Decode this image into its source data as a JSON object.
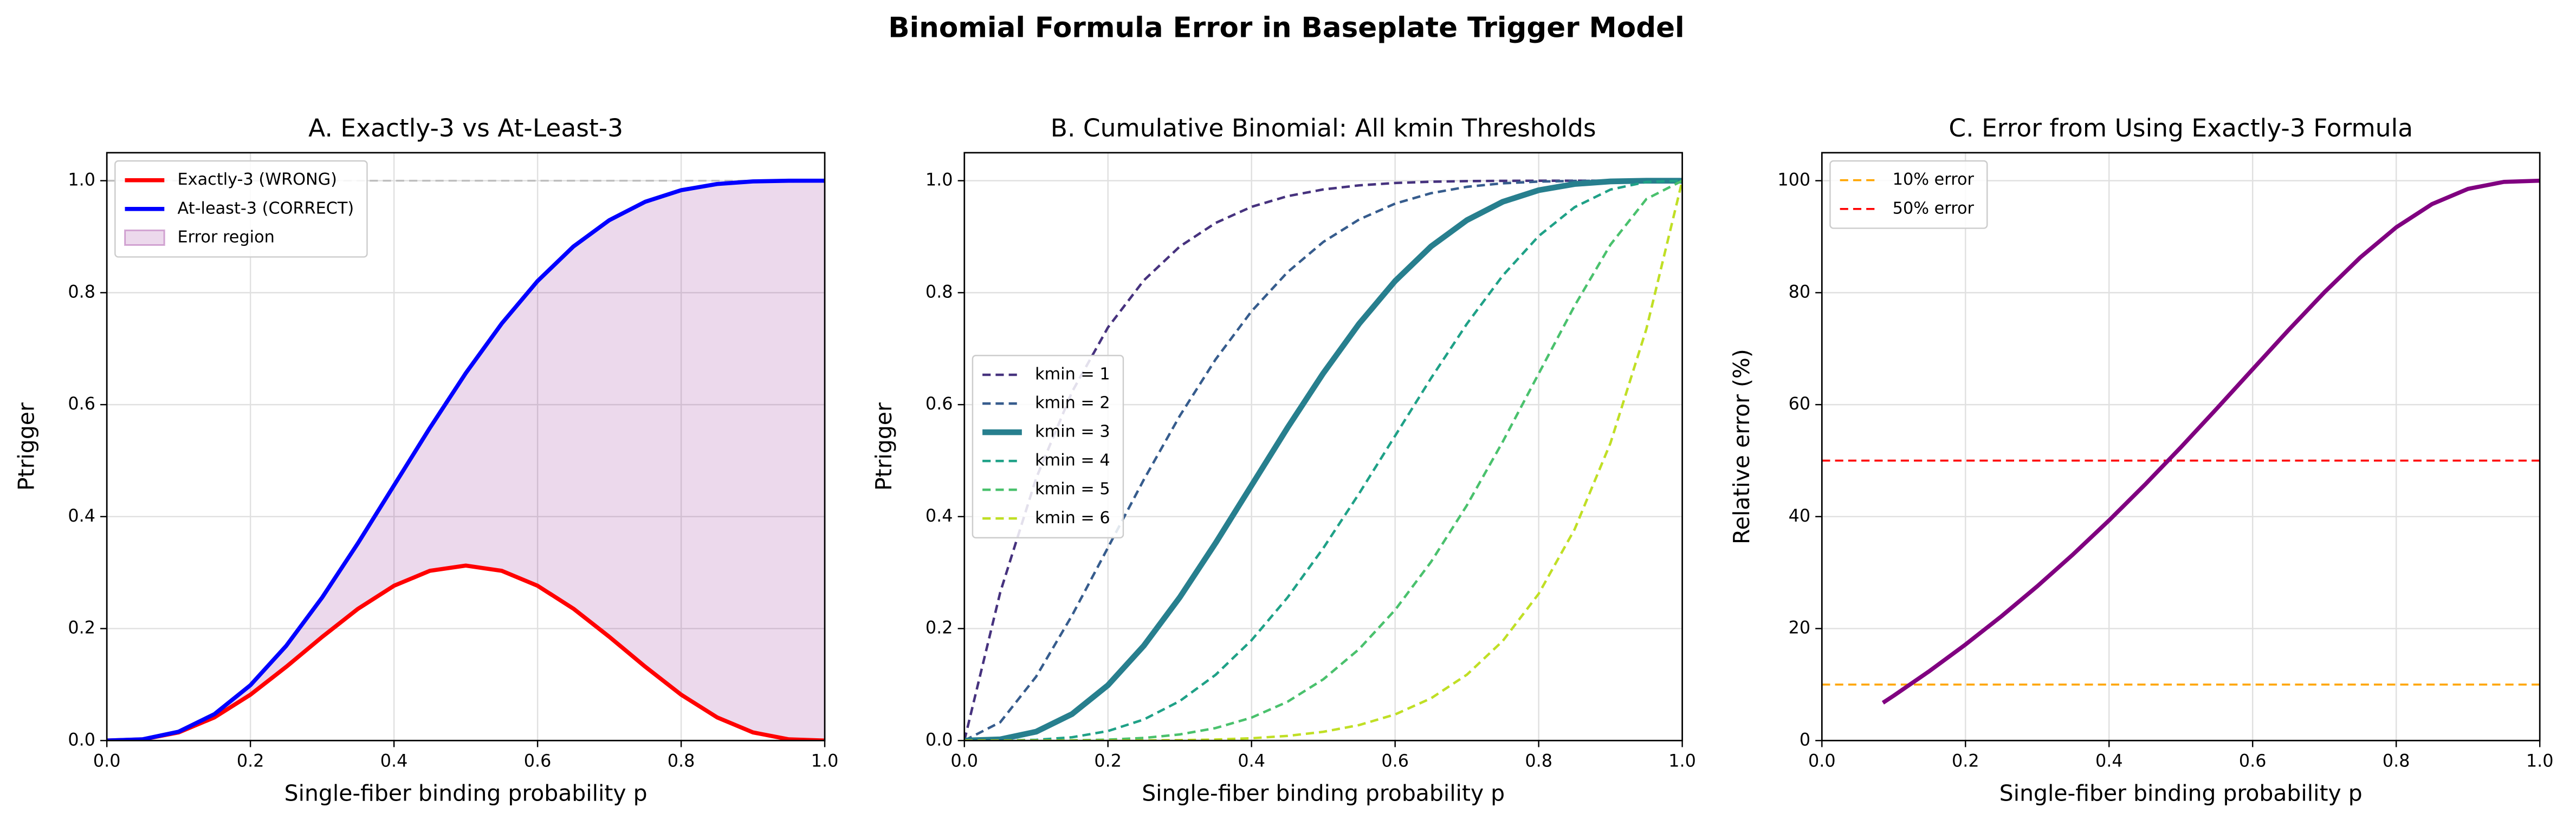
{
  "title": "Binomial Formula Error in Baseplate Trigger Model",
  "chart_data": [
    {
      "type": "line",
      "title": "A. Exactly-3 vs At-Least-3",
      "xlabel": "Single-fiber binding probability p",
      "ylabel": "Ptrigger",
      "x": [
        0,
        0.05,
        0.1,
        0.15,
        0.2,
        0.25,
        0.3,
        0.35,
        0.4,
        0.45,
        0.5,
        0.55,
        0.6,
        0.65,
        0.7,
        0.75,
        0.8,
        0.85,
        0.9,
        0.95,
        1
      ],
      "series": [
        {
          "name": "Exactly-3 (WRONG)",
          "color": "#ff0000",
          "linewidth": 2.5,
          "linestyle": "solid",
          "values": [
            0,
            0.002143,
            0.01458,
            0.041453,
            0.08192,
            0.131836,
            0.18522,
            0.235491,
            0.27648,
            0.303218,
            0.3125,
            0.303218,
            0.27648,
            0.235491,
            0.18522,
            0.131836,
            0.08192,
            0.041453,
            0.01458,
            0.002143,
            0
          ]
        },
        {
          "name": "At-least-3 (CORRECT)",
          "color": "#0000ff",
          "linewidth": 2.5,
          "linestyle": "solid",
          "values": [
            0,
            0.00223,
            0.01585,
            0.047338,
            0.09888,
            0.169434,
            0.25569,
            0.352915,
            0.45568,
            0.558482,
            0.65625,
            0.744742,
            0.8208,
            0.882576,
            0.92953,
            0.962403,
            0.98304,
            0.994115,
            0.99873,
            0.999913,
            1
          ]
        }
      ],
      "fill_between": {
        "name": "Error region",
        "color": "#800080",
        "opacity": 0.15,
        "series": [
          0,
          1
        ]
      },
      "hlines": [
        {
          "value": 1,
          "color": "#999999",
          "linestyle": "dashed",
          "opacity": 0.5
        }
      ],
      "xlim": [
        0,
        1
      ],
      "ylim": [
        0,
        1.05
      ],
      "xticks": [
        {
          "value": 0,
          "label": "0.0"
        },
        {
          "value": 0.2,
          "label": "0.2"
        },
        {
          "value": 0.4,
          "label": "0.4"
        },
        {
          "value": 0.6,
          "label": "0.6"
        },
        {
          "value": 0.8,
          "label": "0.8"
        },
        {
          "value": 1,
          "label": "1.0"
        }
      ],
      "yticks": [
        {
          "value": 0,
          "label": "0.0"
        },
        {
          "value": 0.2,
          "label": "0.2"
        },
        {
          "value": 0.4,
          "label": "0.4"
        },
        {
          "value": 0.6,
          "label": "0.6"
        },
        {
          "value": 0.8,
          "label": "0.8"
        },
        {
          "value": 1,
          "label": "1.0"
        }
      ],
      "grid": true,
      "legend": "upper left"
    },
    {
      "type": "line",
      "title": "B. Cumulative Binomial: All kmin Thresholds",
      "xlabel": "Single-fiber binding probability p",
      "ylabel": "Ptrigger",
      "x": [
        0,
        0.05,
        0.1,
        0.15,
        0.2,
        0.25,
        0.3,
        0.35,
        0.4,
        0.45,
        0.5,
        0.55,
        0.6,
        0.65,
        0.7,
        0.75,
        0.8,
        0.85,
        0.9,
        0.95,
        1
      ],
      "series": [
        {
          "name": "kmin = 1",
          "color": "#46327e",
          "linewidth": 1.5,
          "linestyle": "dashed",
          "values": [
            0,
            0.264908,
            0.468559,
            0.62285,
            0.737856,
            0.822021,
            0.882351,
            0.924581,
            0.953344,
            0.972319,
            0.984375,
            0.991696,
            0.995904,
            0.998162,
            0.999271,
            0.999756,
            0.999936,
            0.999989,
            0.999999,
            1,
            1
          ]
        },
        {
          "name": "kmin = 2",
          "color": "#365c8d",
          "linewidth": 1.5,
          "linestyle": "dashed",
          "values": [
            0,
            0.032774,
            0.114265,
            0.223515,
            0.34464,
            0.466065,
            0.579825,
            0.68092,
            0.76672,
            0.836439,
            0.890625,
            0.930808,
            0.95904,
            0.977678,
            0.989065,
            0.995362,
            0.9984,
            0.999601,
            0.999945,
            0.999998,
            1
          ]
        },
        {
          "name": "kmin = 3",
          "color": "#277f8e",
          "linewidth": 3.5,
          "linestyle": "solid",
          "values": [
            0,
            0.00223,
            0.01585,
            0.047338,
            0.09888,
            0.169434,
            0.25569,
            0.352915,
            0.45568,
            0.558482,
            0.65625,
            0.744742,
            0.8208,
            0.882576,
            0.92953,
            0.962403,
            0.98304,
            0.994115,
            0.99873,
            0.999913,
            1
          ]
        },
        {
          "name": "kmin = 4",
          "color": "#1fa187",
          "linewidth": 1.5,
          "linestyle": "dashed",
          "values": [
            0,
            8.6e-05,
            0.00127,
            0.005885,
            0.01696,
            0.037598,
            0.07047,
            0.117424,
            0.1792,
            0.255264,
            0.34375,
            0.441524,
            0.54432,
            0.647085,
            0.74431,
            0.830567,
            0.90112,
            0.952662,
            0.98415,
            0.99777,
            1
          ]
        },
        {
          "name": "kmin = 5",
          "color": "#4ac16d",
          "linewidth": 1.5,
          "linestyle": "dashed",
          "values": [
            0,
            2e-06,
            5.5e-05,
            0.000399,
            0.0016,
            0.004639,
            0.010935,
            0.022322,
            0.04096,
            0.069198,
            0.109375,
            0.163567,
            0.23328,
            0.31908,
            0.420175,
            0.533936,
            0.65536,
            0.776485,
            0.885735,
            0.967226,
            1
          ]
        },
        {
          "name": "kmin = 6",
          "color": "#c0df25",
          "linewidth": 1.5,
          "linestyle": "dashed",
          "values": [
            0,
            0,
            1e-06,
            1.1e-05,
            6.4e-05,
            0.000244,
            0.000729,
            0.001838,
            0.004096,
            0.008304,
            0.015625,
            0.027681,
            0.046656,
            0.075419,
            0.117649,
            0.177979,
            0.262144,
            0.37715,
            0.531441,
            0.735092,
            1
          ]
        }
      ],
      "xlim": [
        0,
        1
      ],
      "ylim": [
        0,
        1.05
      ],
      "xticks": [
        {
          "value": 0,
          "label": "0.0"
        },
        {
          "value": 0.2,
          "label": "0.2"
        },
        {
          "value": 0.4,
          "label": "0.4"
        },
        {
          "value": 0.6,
          "label": "0.6"
        },
        {
          "value": 0.8,
          "label": "0.8"
        },
        {
          "value": 1,
          "label": "1.0"
        }
      ],
      "yticks": [
        {
          "value": 0,
          "label": "0.0"
        },
        {
          "value": 0.2,
          "label": "0.2"
        },
        {
          "value": 0.4,
          "label": "0.4"
        },
        {
          "value": 0.6,
          "label": "0.6"
        },
        {
          "value": 0.8,
          "label": "0.8"
        },
        {
          "value": 1,
          "label": "1.0"
        }
      ],
      "grid": true,
      "legend": "center left"
    },
    {
      "type": "line",
      "title": "C. Error from Using Exactly-3 Formula",
      "xlabel": "Single-fiber binding probability p",
      "ylabel": "Relative error (%)",
      "x": [
        0.085,
        0.1,
        0.15,
        0.2,
        0.25,
        0.3,
        0.35,
        0.4,
        0.45,
        0.5,
        0.55,
        0.6,
        0.65,
        0.7,
        0.75,
        0.8,
        0.85,
        0.9,
        0.95,
        1
      ],
      "series": [
        {
          "color": "#800080",
          "linewidth": 2.5,
          "linestyle": "solid",
          "values": [
            6.75,
            8.01,
            12.43,
            17.15,
            22.19,
            27.56,
            33.27,
            39.33,
            45.71,
            52.38,
            59.29,
            66.32,
            73.32,
            80.07,
            86.3,
            91.67,
            95.83,
            98.54,
            99.79,
            100
          ]
        }
      ],
      "hlines": [
        {
          "name": "10% error",
          "value": 10,
          "color": "#ffa500",
          "linestyle": "dashed",
          "opacity": 1
        },
        {
          "name": "50% error",
          "value": 50,
          "color": "#ff0000",
          "linestyle": "dashed",
          "opacity": 1
        }
      ],
      "xlim": [
        0,
        1
      ],
      "ylim": [
        0,
        105
      ],
      "xticks": [
        {
          "value": 0,
          "label": "0.0"
        },
        {
          "value": 0.2,
          "label": "0.2"
        },
        {
          "value": 0.4,
          "label": "0.4"
        },
        {
          "value": 0.6,
          "label": "0.6"
        },
        {
          "value": 0.8,
          "label": "0.8"
        },
        {
          "value": 1,
          "label": "1.0"
        }
      ],
      "yticks": [
        0,
        20,
        40,
        60,
        80,
        100
      ],
      "grid": true,
      "legend": "upper left"
    }
  ]
}
